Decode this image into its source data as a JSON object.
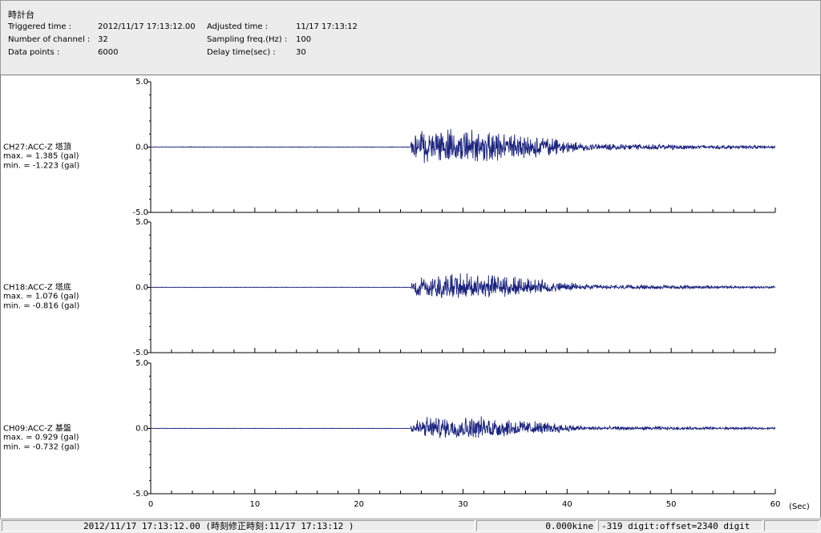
{
  "header": {
    "title": "時計台",
    "triggered_label": "Triggered time :",
    "triggered_value": "2012/11/17 17:13:12.00",
    "channels_label": "Number of channel :",
    "channels_value": "32",
    "datapoints_label": "Data points :",
    "datapoints_value": "6000",
    "adjusted_label": "Adjusted time :",
    "adjusted_value": "11/17 17:13:12",
    "sampling_label": "Sampling freq.(Hz) :",
    "sampling_value": "100",
    "delay_label": "Delay time(sec) :",
    "delay_value": "30"
  },
  "colors": {
    "trace": "#1a237e",
    "axis": "#000000",
    "header_bg": "#ececec"
  },
  "chart_data": {
    "type": "line",
    "x_unit_label": "(Sec)",
    "xlim": [
      0,
      60
    ],
    "x_ticks": [
      "0",
      "10",
      "20",
      "30",
      "40",
      "50",
      "60"
    ],
    "channels": [
      {
        "label": "CH27:ACC-Z 塔頂",
        "max_text": "max. = 1.385 (gal)",
        "min_text": "min. = -1.223 (gal)",
        "max": 1.385,
        "min": -1.223,
        "ylim": [
          -5.0,
          5.0
        ],
        "y_ticks": [
          "5.0",
          "0.0",
          "-5.0"
        ]
      },
      {
        "label": "CH18:ACC-Z 塔底",
        "max_text": "max. = 1.076 (gal)",
        "min_text": "min. = -0.816 (gal)",
        "max": 1.076,
        "min": -0.816,
        "ylim": [
          -5.0,
          5.0
        ],
        "y_ticks": [
          "5.0",
          "0.0",
          "-5.0"
        ]
      },
      {
        "label": "CH09:ACC-Z 基盤",
        "max_text": "max. = 0.929 (gal)",
        "min_text": "min. = -0.732 (gal)",
        "max": 0.929,
        "min": -0.732,
        "ylim": [
          -5.0,
          5.0
        ],
        "y_ticks": [
          "5.0",
          "0.0",
          "-5.0"
        ]
      }
    ]
  },
  "status": {
    "time_text": "2012/11/17 17:13:12.00  (時刻修正時刻:11/17 17:13:12 )",
    "kine_text": "0.000kine",
    "digit_text": "-319 digit:offset=2340 digit"
  }
}
